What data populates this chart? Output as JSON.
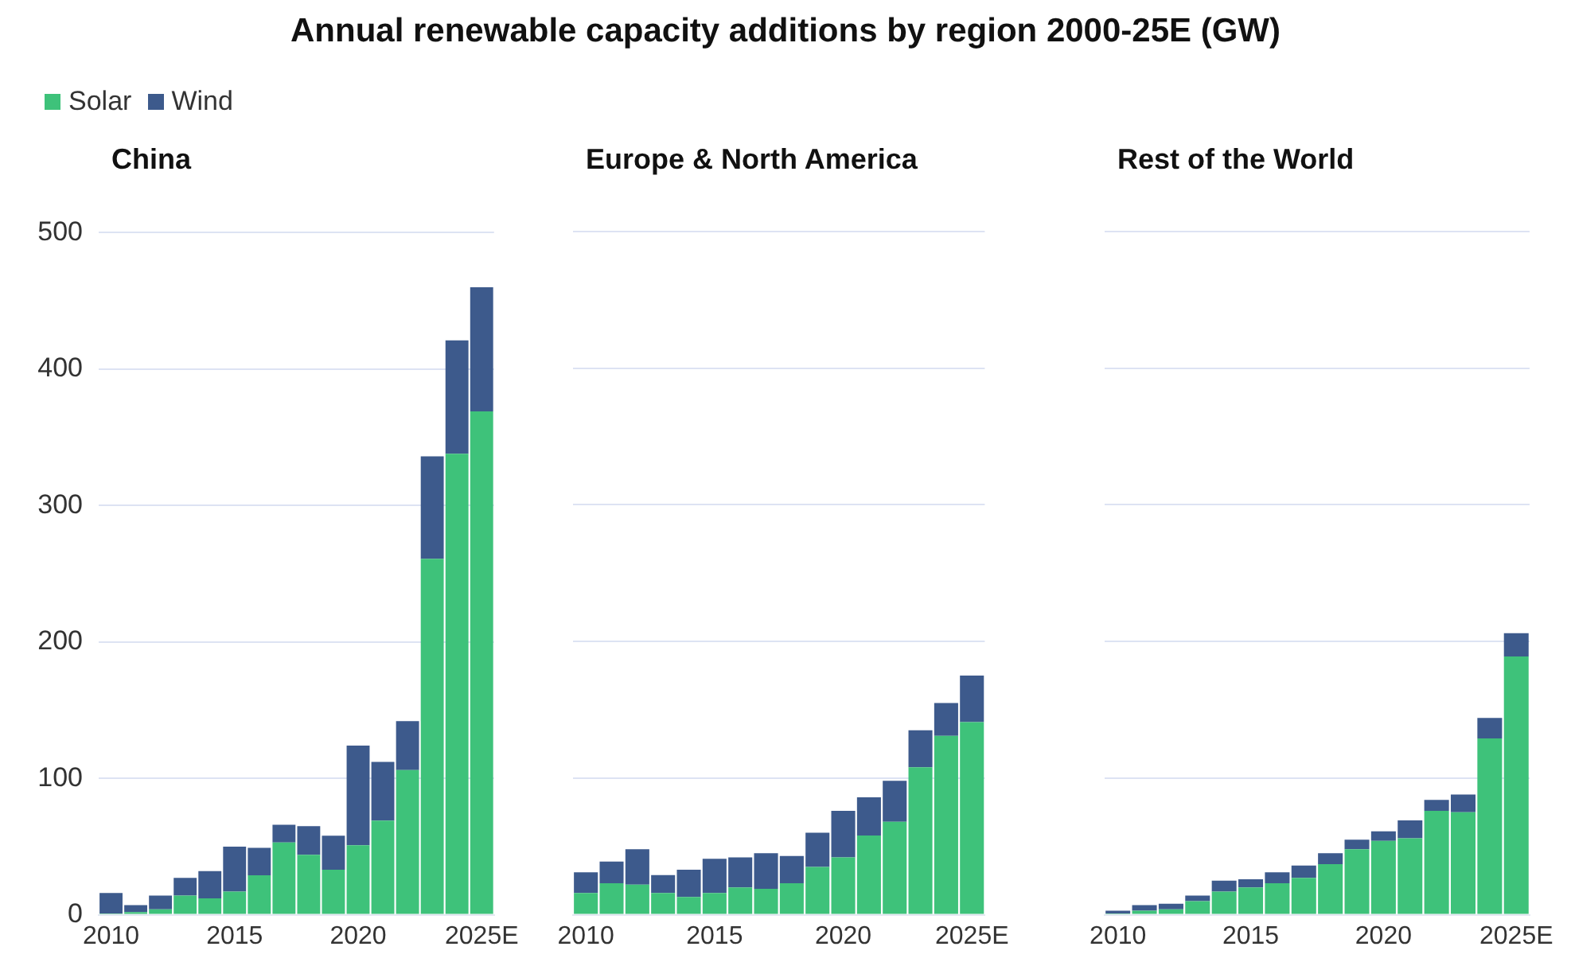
{
  "chart_data": [
    {
      "type": "bar",
      "title": "Annual renewable capacity additions by region 2000-25E (GW)",
      "subtitle": "China",
      "stacked": true,
      "legend": "top left",
      "grid": "y",
      "categories": [
        "2010",
        null,
        null,
        null,
        null,
        "2015",
        null,
        null,
        null,
        null,
        "2020",
        null,
        null,
        null,
        null,
        "2025E"
      ],
      "ylim": [
        0,
        500
      ],
      "yticks": [
        0,
        100,
        200,
        300,
        400,
        500
      ],
      "series": [
        {
          "name": "Solar",
          "color": "#3ec27a",
          "values": [
            1,
            2,
            4,
            14,
            12,
            17,
            29,
            53,
            44,
            33,
            51,
            69,
            106,
            261,
            338,
            369
          ]
        },
        {
          "name": "Wind",
          "color": "#3d5a8c",
          "values": [
            15,
            5,
            10,
            13,
            20,
            33,
            20,
            13,
            21,
            25,
            73,
            43,
            36,
            75,
            83,
            91
          ]
        }
      ]
    },
    {
      "type": "bar",
      "subtitle": "Europe & North America",
      "stacked": true,
      "grid": "y",
      "tick_labels": "x",
      "categories": [
        "2010",
        null,
        null,
        null,
        null,
        "2015",
        null,
        null,
        null,
        null,
        "2020",
        null,
        null,
        null,
        null,
        "2025E"
      ],
      "ylim": [
        0,
        500
      ],
      "yticks": [
        0,
        100,
        200,
        300,
        400,
        500
      ],
      "series": [
        {
          "color": "#3ec27a",
          "values": [
            16,
            23,
            22,
            16,
            13,
            16,
            20,
            19,
            23,
            35,
            42,
            58,
            68,
            108,
            131,
            141
          ]
        },
        {
          "color": "#3d5a8c",
          "values": [
            15,
            16,
            26,
            13,
            20,
            25,
            22,
            26,
            20,
            25,
            34,
            28,
            30,
            27,
            24,
            34
          ]
        }
      ]
    },
    {
      "type": "bar",
      "subtitle": "Rest of the World",
      "stacked": true,
      "grid": "y",
      "tick_labels": "x",
      "categories": [
        "2010",
        null,
        null,
        null,
        null,
        "2015",
        null,
        null,
        null,
        null,
        "2020",
        null,
        null,
        null,
        null,
        "2025E"
      ],
      "ylim": [
        0,
        500
      ],
      "yticks": [
        0,
        100,
        200,
        300,
        400,
        500
      ],
      "series": [
        {
          "color": "#3ec27a",
          "values": [
            1,
            3,
            4,
            10,
            17,
            20,
            23,
            27,
            37,
            48,
            54,
            56,
            76,
            75,
            129,
            189
          ]
        },
        {
          "color": "#3d5a8c",
          "values": [
            2,
            4,
            4,
            4,
            8,
            6,
            8,
            9,
            8,
            7,
            7,
            13,
            8,
            13,
            15,
            17
          ]
        }
      ]
    }
  ]
}
